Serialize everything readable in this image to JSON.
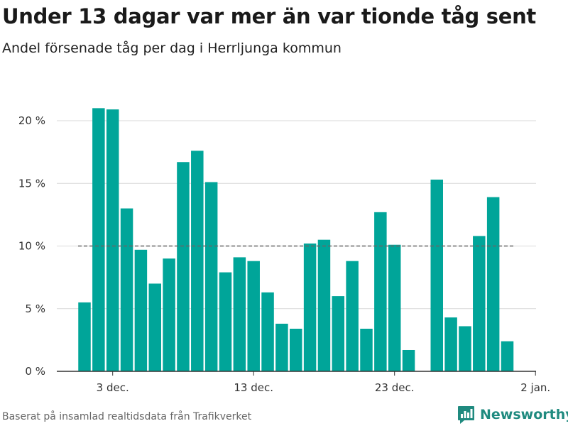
{
  "header": {
    "title": "Under 13 dagar var mer än var tionde tåg sent",
    "subtitle": "Andel försenade tåg per dag i Herrljunga kommun"
  },
  "footer": {
    "source": "Baserat på insamlad realtidsdata från Trafikverket",
    "brand": "Newsworthy"
  },
  "colors": {
    "bar": "#00a599",
    "grid": "#d9d9d9",
    "reference_line": "#666666",
    "axis": "#333333",
    "brand": "#1f8a7f"
  },
  "chart_data": {
    "type": "bar",
    "title": "Under 13 dagar var mer än var tionde tåg sent",
    "subtitle": "Andel försenade tåg per dag i Herrljunga kommun",
    "xlabel": "",
    "ylabel": "",
    "ylim": [
      0,
      20
    ],
    "yticks": [
      0,
      5,
      10,
      15,
      20
    ],
    "ytick_labels": [
      "0 %",
      "5 %",
      "10 %",
      "15 %",
      "20 %"
    ],
    "xticks": [
      {
        "date": "2023-12-03",
        "label": "3 dec."
      },
      {
        "date": "2023-12-13",
        "label": "13 dec."
      },
      {
        "date": "2023-12-23",
        "label": "23 dec."
      },
      {
        "date": "2024-01-02",
        "label": "2 jan."
      }
    ],
    "reference_line": 10,
    "grid": true,
    "dates": [
      "2023-12-01",
      "2023-12-02",
      "2023-12-03",
      "2023-12-04",
      "2023-12-05",
      "2023-12-06",
      "2023-12-07",
      "2023-12-08",
      "2023-12-09",
      "2023-12-10",
      "2023-12-11",
      "2023-12-12",
      "2023-12-13",
      "2023-12-14",
      "2023-12-15",
      "2023-12-16",
      "2023-12-17",
      "2023-12-18",
      "2023-12-19",
      "2023-12-20",
      "2023-12-21",
      "2023-12-22",
      "2023-12-23",
      "2023-12-24",
      "2023-12-25",
      "2023-12-26",
      "2023-12-27",
      "2023-12-28",
      "2023-12-29",
      "2023-12-30",
      "2023-12-31"
    ],
    "values": [
      5.5,
      21.0,
      20.9,
      13.0,
      9.7,
      7.0,
      9.0,
      16.7,
      17.6,
      15.1,
      7.9,
      9.1,
      8.8,
      6.3,
      3.8,
      3.4,
      10.2,
      10.5,
      6.0,
      8.8,
      3.4,
      12.7,
      10.1,
      1.7,
      null,
      15.3,
      4.3,
      3.6,
      10.8,
      13.9,
      2.4
    ]
  }
}
